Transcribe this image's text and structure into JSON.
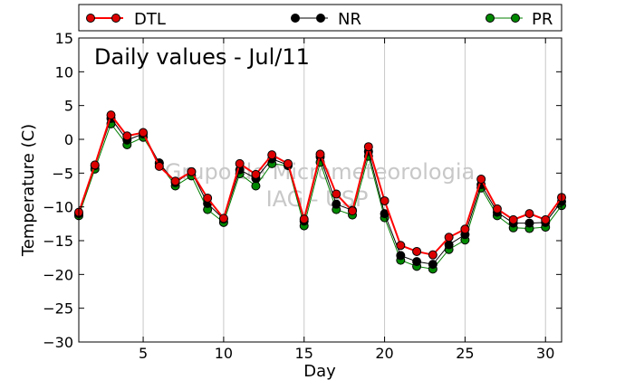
{
  "chart_data": {
    "type": "line",
    "title": "Daily values - Jul/11",
    "xlabel": "Day",
    "ylabel": "Temperature (C)",
    "xlim": [
      1,
      31
    ],
    "ylim": [
      -30,
      15
    ],
    "x_ticks": [
      5,
      10,
      15,
      20,
      25,
      30
    ],
    "y_ticks": [
      15,
      10,
      5,
      0,
      -5,
      -10,
      -15,
      -20,
      -25,
      -30
    ],
    "grid": "vertical",
    "legend_position": "top",
    "watermark": [
      "Grupo de Micrometeorologia",
      "IAG - USP"
    ],
    "x": [
      1,
      2,
      3,
      4,
      5,
      6,
      7,
      8,
      9,
      10,
      11,
      12,
      13,
      14,
      15,
      16,
      17,
      18,
      19,
      20,
      21,
      22,
      23,
      24,
      25,
      26,
      27,
      28,
      29,
      30,
      31
    ],
    "series": [
      {
        "name": "DTL",
        "color": "#ff0000",
        "marker_color": "#dd0000",
        "values": [
          -10.8,
          -3.8,
          3.6,
          0.5,
          1.0,
          -4.0,
          -6.2,
          -4.8,
          -8.7,
          -11.7,
          -3.6,
          -5.2,
          -2.3,
          -3.6,
          -11.8,
          -2.2,
          -8.1,
          -10.6,
          -1.1,
          -9.1,
          -15.7,
          -16.6,
          -17.1,
          -14.5,
          -13.3,
          -5.9,
          -10.3,
          -11.9,
          -11.0,
          -11.9,
          -8.6
        ]
      },
      {
        "name": "NR",
        "color": "#000000",
        "marker_color": "#000000",
        "values": [
          -11.0,
          -3.9,
          3.1,
          -0.1,
          0.8,
          -3.5,
          -6.4,
          -4.8,
          -9.5,
          -11.8,
          -4.5,
          -5.8,
          -2.9,
          -3.8,
          -12.1,
          -2.6,
          -9.6,
          -10.5,
          -1.8,
          -11.0,
          -17.2,
          -18.1,
          -18.5,
          -15.6,
          -14.1,
          -6.7,
          -10.8,
          -12.4,
          -12.4,
          -12.3,
          -9.2
        ]
      },
      {
        "name": "PR",
        "color": "#007f00",
        "marker_color": "#008800",
        "values": [
          -11.3,
          -4.4,
          2.3,
          -0.8,
          0.3,
          -3.5,
          -6.9,
          -5.4,
          -10.4,
          -12.3,
          -5.1,
          -6.9,
          -3.6,
          -3.9,
          -12.8,
          -3.4,
          -10.4,
          -11.2,
          -2.5,
          -11.6,
          -17.9,
          -18.8,
          -19.2,
          -16.3,
          -14.9,
          -7.2,
          -11.3,
          -13.1,
          -13.2,
          -13.0,
          -9.8
        ]
      }
    ]
  }
}
